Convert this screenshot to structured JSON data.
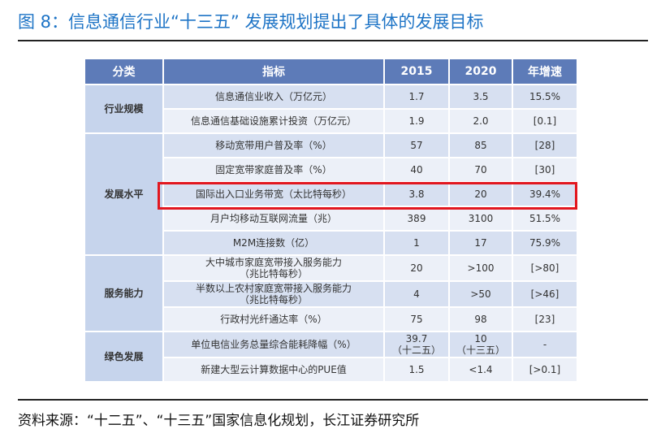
{
  "title": "图 8：信息通信行业“十三五” 发展规划提出了具体的发展目标",
  "source": "资料来源：“十二五”、“十三五”国家信息化规划，长江证券研究所",
  "table": {
    "headers": [
      "分类",
      "指标",
      "2015",
      "2020",
      "年增速"
    ],
    "categories": [
      "行业规模",
      "发展水平",
      "服务能力",
      "绿色发展"
    ],
    "rows": [
      {
        "indicator": "信息通信业收入（万亿元）",
        "y2015": "1.7",
        "y2020": "3.5",
        "growth": "15.5%"
      },
      {
        "indicator": "信息通信基础设施累计投资（万亿元）",
        "y2015": "1.9",
        "y2020": "2.0",
        "growth": "[0.1]"
      },
      {
        "indicator": "移动宽带用户普及率（%）",
        "y2015": "57",
        "y2020": "85",
        "growth": "[28]"
      },
      {
        "indicator": "固定宽带家庭普及率（%）",
        "y2015": "40",
        "y2020": "70",
        "growth": "[30]"
      },
      {
        "indicator": "国际出入口业务带宽（太比特每秒）",
        "y2015": "3.8",
        "y2020": "20",
        "growth": "39.4%"
      },
      {
        "indicator": "月户均移动互联网流量（兆）",
        "y2015": "389",
        "y2020": "3100",
        "growth": "51.5%"
      },
      {
        "indicator": "M2M连接数（亿）",
        "y2015": "1",
        "y2020": "17",
        "growth": "75.9%"
      },
      {
        "indicator_l1": "大中城市家庭宽带接入服务能力",
        "indicator_l2": "（兆比特每秒）",
        "y2015": "20",
        "y2020": ">100",
        "growth": "[>80]"
      },
      {
        "indicator_l1": "半数以上农村家庭宽带接入服务能力",
        "indicator_l2": "（兆比特每秒）",
        "y2015": "4",
        "y2020": ">50",
        "growth": "[>46]"
      },
      {
        "indicator": "行政村光纤通达率（%）",
        "y2015": "75",
        "y2020": "98",
        "growth": "[23]"
      },
      {
        "indicator": "单位电信业务总量综合能耗降幅（%）",
        "y2015_l1": "39.7",
        "y2015_l2": "（十二五）",
        "y2020_l1": "10",
        "y2020_l2": "（十三五）",
        "growth": "-"
      },
      {
        "indicator": "新建大型云计算数据中心的PUE值",
        "y2015": "1.5",
        "y2020": "<1.4",
        "growth": "[>0.1]"
      }
    ]
  }
}
